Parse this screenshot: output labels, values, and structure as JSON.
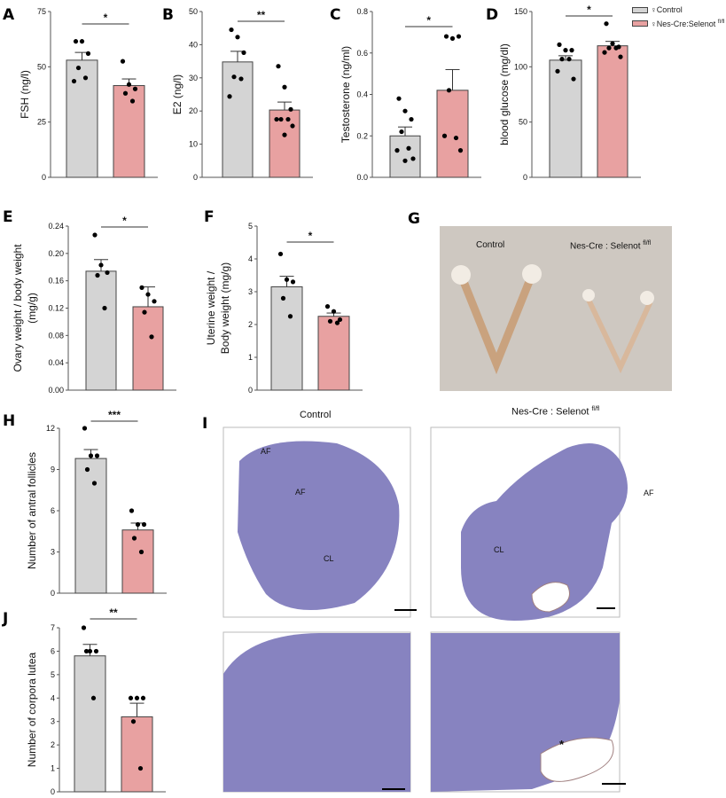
{
  "colors": {
    "control": "#d4d4d4",
    "knockout": "#e8a1a1",
    "outline": "#444444",
    "tissue": "#8783c0",
    "photo_bg": "#cec8c1",
    "uterus": "#c9a27e"
  },
  "legend": {
    "entries": [
      {
        "label": "♀Control",
        "superscript": ""
      },
      {
        "label": "♀Nes-Cre:Selenot ",
        "superscript": "fl/fl"
      }
    ]
  },
  "chart_data": [
    {
      "panel": "A",
      "type": "bar",
      "ylabel": "FSH (ng/l)",
      "ylim": [
        0,
        75
      ],
      "yticks": [
        0,
        25,
        50,
        75
      ],
      "ytick_labels": [
        "0",
        "25",
        "50",
        "75"
      ],
      "significance": "*",
      "series": [
        {
          "name": "♀Control",
          "mean": 53,
          "sem": 3.5,
          "points": [
            61.5,
            61.5,
            56,
            49.5,
            45,
            43.5
          ]
        },
        {
          "name": "♀Nes-Cre:Selenot fl/fl",
          "mean": 41.5,
          "sem": 3,
          "points": [
            52.5,
            42,
            40,
            38,
            34.5
          ]
        }
      ]
    },
    {
      "panel": "B",
      "type": "bar",
      "ylabel": "E2 (ng/l)",
      "ylim": [
        0,
        50
      ],
      "yticks": [
        0,
        10,
        20,
        30,
        40,
        50
      ],
      "ytick_labels": [
        "0",
        "10",
        "20",
        "30",
        "40",
        "50"
      ],
      "significance": "**",
      "series": [
        {
          "name": "♀Control",
          "mean": 34.8,
          "sem": 3.2,
          "points": [
            44.5,
            42.3,
            37.6,
            30.3,
            29.7,
            24.4
          ]
        },
        {
          "name": "♀Nes-Cre:Selenot fl/fl",
          "mean": 20.3,
          "sem": 2.4,
          "points": [
            33.5,
            27.2,
            20.5,
            17.5,
            17.5,
            17.5,
            15.5,
            12.8
          ]
        }
      ]
    },
    {
      "panel": "C",
      "type": "bar",
      "ylabel": "Testosterone (ng/ml)",
      "ylim": [
        0,
        0.8
      ],
      "yticks": [
        0,
        0.2,
        0.4,
        0.6,
        0.8
      ],
      "ytick_labels": [
        "0.0",
        "0.2",
        "0.4",
        "0.6",
        "0.8"
      ],
      "significance": "*",
      "series": [
        {
          "name": "♀Control",
          "mean": 0.2,
          "sem": 0.043,
          "points": [
            0.38,
            0.32,
            0.28,
            0.22,
            0.14,
            0.13,
            0.09,
            0.08
          ]
        },
        {
          "name": "♀Nes-Cre:Selenot fl/fl",
          "mean": 0.42,
          "sem": 0.1,
          "points": [
            0.68,
            0.67,
            0.68,
            0.42,
            0.19,
            0.2,
            0.13
          ]
        }
      ]
    },
    {
      "panel": "D",
      "type": "bar",
      "ylabel": "blood glucose (mg/dl)",
      "ylim": [
        0,
        150
      ],
      "yticks": [
        0,
        50,
        100,
        150
      ],
      "ytick_labels": [
        "0",
        "50",
        "100",
        "150"
      ],
      "significance": "*",
      "series": [
        {
          "name": "♀Control",
          "mean": 106,
          "sem": 4,
          "points": [
            120,
            115,
            115,
            107,
            107,
            96,
            89
          ]
        },
        {
          "name": "♀Nes-Cre:Selenot fl/fl",
          "mean": 119,
          "sem": 4,
          "points": [
            139,
            121,
            118,
            117,
            117,
            113,
            109
          ]
        }
      ]
    },
    {
      "panel": "E",
      "type": "bar",
      "ylabel": [
        "Ovary weight / body weight",
        "(mg/g)"
      ],
      "ylim": [
        0,
        0.24
      ],
      "yticks": [
        0,
        0.04,
        0.08,
        0.12,
        0.16,
        0.2,
        0.24
      ],
      "ytick_labels": [
        "0.00",
        "0.04",
        "0.08",
        "0.12",
        "0.16",
        "0.20",
        "0.24"
      ],
      "significance": "*",
      "series": [
        {
          "name": "♀Control",
          "mean": 0.174,
          "sem": 0.017,
          "points": [
            0.227,
            0.183,
            0.172,
            0.168,
            0.12
          ]
        },
        {
          "name": "♀Nes-Cre:Selenot fl/fl",
          "mean": 0.122,
          "sem": 0.029,
          "points": [
            0.15,
            0.14,
            0.13,
            0.114,
            0.078
          ]
        }
      ]
    },
    {
      "panel": "F",
      "type": "bar",
      "ylabel": [
        "Uterine weight /",
        "Body weight (mg/g)"
      ],
      "ylim": [
        0,
        5
      ],
      "yticks": [
        0,
        1,
        2,
        3,
        4,
        5
      ],
      "ytick_labels": [
        "0",
        "1",
        "2",
        "3",
        "4",
        "5"
      ],
      "significance": "*",
      "series": [
        {
          "name": "♀Control",
          "mean": 3.15,
          "sem": 0.32,
          "points": [
            4.15,
            3.37,
            3.3,
            2.8,
            2.25
          ]
        },
        {
          "name": "♀Nes-Cre:Selenot fl/fl",
          "mean": 2.25,
          "sem": 0.1,
          "points": [
            2.55,
            2.4,
            2.15,
            2.1,
            2.05
          ]
        }
      ]
    },
    {
      "panel": "H",
      "type": "bar",
      "ylabel": "Number of antral follicles",
      "ylim": [
        0,
        12
      ],
      "yticks": [
        0,
        3,
        6,
        9,
        12
      ],
      "ytick_labels": [
        "0",
        "3",
        "6",
        "9",
        "12"
      ],
      "significance": "***",
      "series": [
        {
          "name": "♀Control",
          "mean": 9.8,
          "sem": 0.65,
          "points": [
            12,
            10,
            10,
            9,
            8
          ]
        },
        {
          "name": "♀Nes-Cre:Selenot fl/fl",
          "mean": 4.6,
          "sem": 0.5,
          "points": [
            6,
            5,
            5,
            4,
            3
          ]
        }
      ]
    },
    {
      "panel": "J",
      "type": "bar",
      "ylabel": "Number of corpora lutea",
      "ylim": [
        0,
        7
      ],
      "yticks": [
        0,
        1,
        2,
        3,
        4,
        5,
        6,
        7
      ],
      "ytick_labels": [
        "0",
        "1",
        "2",
        "3",
        "4",
        "5",
        "6",
        "7"
      ],
      "significance": "**",
      "series": [
        {
          "name": "♀Control",
          "mean": 5.8,
          "sem": 0.49,
          "points": [
            7,
            6,
            6,
            6,
            4
          ]
        },
        {
          "name": "♀Nes-Cre:Selenot fl/fl",
          "mean": 3.2,
          "sem": 0.58,
          "points": [
            4,
            4,
            4,
            3,
            1
          ]
        }
      ]
    }
  ],
  "photos": {
    "G": {
      "letter": "G",
      "control_label": "Control",
      "ko_label": "Nes-Cre : Selenot ",
      "ko_superscript": "fl/fl"
    },
    "I": {
      "letter": "I",
      "control_label": "Control",
      "ko_label": "Nes-Cre : Selenot ",
      "ko_superscript": "fl/fl",
      "tags": {
        "af": "AF",
        "cl": "CL",
        "asterisk": "*"
      }
    }
  }
}
